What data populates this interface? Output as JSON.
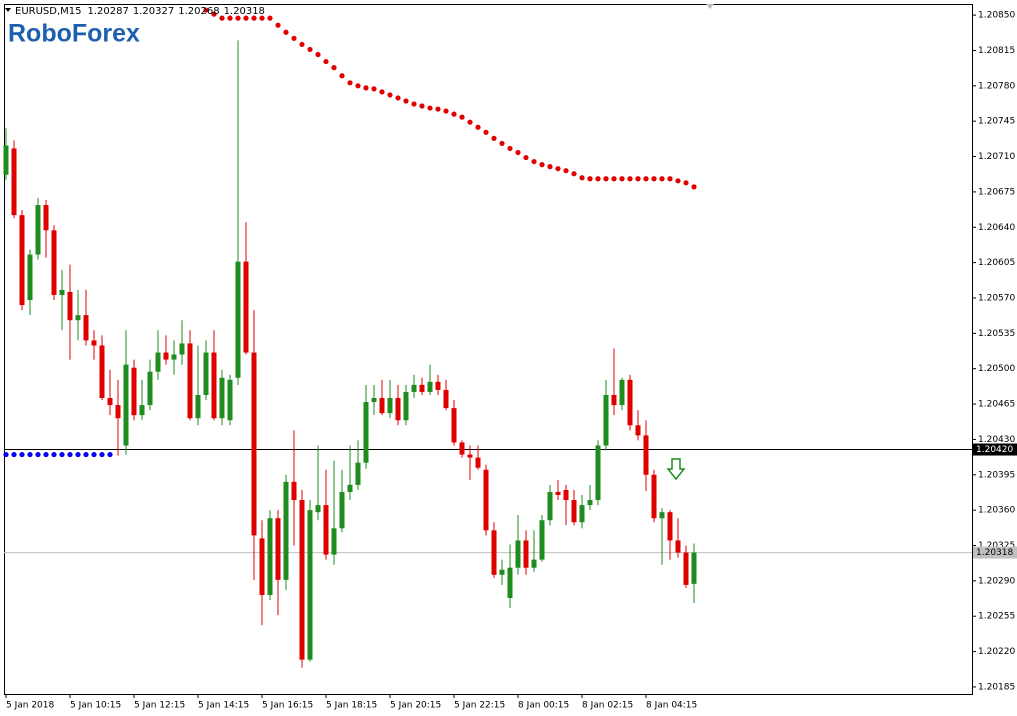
{
  "chart_data": {
    "type": "candlestick",
    "symbol": "EURUSD,M15",
    "watermark": "RoboForex",
    "categories": [
      "5 Jan 2018",
      null,
      null,
      null,
      null,
      null,
      null,
      null,
      "5 Jan 10:15",
      null,
      null,
      null,
      null,
      null,
      null,
      null,
      "5 Jan 12:15",
      null,
      null,
      null,
      null,
      null,
      null,
      null,
      "5 Jan 14:15",
      null,
      null,
      null,
      null,
      null,
      null,
      null,
      "5 Jan 16:15",
      null,
      null,
      null,
      null,
      null,
      null,
      null,
      "5 Jan 18:15",
      null,
      null,
      null,
      null,
      null,
      null,
      null,
      "5 Jan 20:15",
      null,
      null,
      null,
      null,
      null,
      null,
      null,
      "5 Jan 22:15",
      null,
      null,
      null,
      null,
      null,
      null,
      null,
      "8 Jan 00:15",
      null,
      null,
      null,
      null,
      null,
      null,
      null,
      "8 Jan 02:15",
      null,
      null,
      null,
      null,
      null,
      null,
      null,
      "8 Jan 04:15",
      null,
      null,
      null,
      null,
      null,
      null
    ],
    "open": [
      1.20692,
      1.20718,
      1.20652,
      1.20568,
      1.20613,
      1.20662,
      1.20637,
      1.20573,
      1.20576,
      1.20548,
      1.20553,
      1.20528,
      1.20523,
      1.20471,
      1.20464,
      1.20424,
      1.20501,
      1.20454,
      1.20464,
      1.20497,
      1.20516,
      1.20509,
      1.20514,
      1.20525,
      1.20451,
      1.20474,
      1.20516,
      1.20451,
      1.20449,
      1.20491,
      1.20606,
      1.20516,
      1.20332,
      1.20276,
      1.20352,
      1.20291,
      1.20388,
      1.2037,
      1.20212,
      1.20358,
      1.20365,
      1.20316,
      1.20342,
      1.20378,
      1.20385,
      1.20407,
      1.20467,
      1.20471,
      1.20456,
      1.20471,
      1.20449,
      1.20477,
      1.20484,
      1.20477,
      1.20487,
      1.20479,
      1.20461,
      1.20427,
      1.20415,
      1.20412,
      1.204,
      1.2034,
      1.20296,
      1.20273,
      1.20303,
      1.2033,
      1.20303,
      1.20311,
      1.2035,
      1.20378,
      1.2038,
      1.2037,
      1.20348,
      1.20365,
      1.2037,
      1.20424,
      1.20474,
      1.20464,
      1.20489,
      1.20444,
      1.20434,
      1.20395,
      1.20352,
      1.20358,
      1.2033,
      1.20318,
      1.20287
    ],
    "high": [
      1.20738,
      1.20726,
      1.20657,
      1.20618,
      1.20669,
      1.20667,
      1.20642,
      1.20598,
      1.20603,
      1.20578,
      1.20578,
      1.20538,
      1.20533,
      1.20499,
      1.20489,
      1.20538,
      1.20509,
      1.20489,
      1.20509,
      1.20538,
      1.20533,
      1.20528,
      1.20548,
      1.20538,
      1.20523,
      1.20528,
      1.20538,
      1.20499,
      1.20494,
      1.20825,
      1.20645,
      1.20558,
      1.2035,
      1.2036,
      1.2036,
      1.20395,
      1.20439,
      1.2038,
      1.2037,
      1.20424,
      1.204,
      1.20409,
      1.204,
      1.20424,
      1.20429,
      1.20484,
      1.20484,
      1.20489,
      1.20489,
      1.20484,
      1.20484,
      1.20494,
      1.20491,
      1.20504,
      1.20494,
      1.20489,
      1.20469,
      1.20429,
      1.20424,
      1.20424,
      1.20405,
      1.20348,
      1.20311,
      1.20326,
      1.20355,
      1.2034,
      1.2034,
      1.20355,
      1.20385,
      1.2039,
      1.20385,
      1.2038,
      1.20375,
      1.20385,
      1.20429,
      1.20489,
      1.2052,
      1.20491,
      1.20494,
      1.20459,
      1.20449,
      1.204,
      1.20362,
      1.2036,
      1.20352,
      1.20325,
      1.20327
    ],
    "low": [
      1.20687,
      1.20649,
      1.20558,
      1.20553,
      1.20608,
      1.2061,
      1.20568,
      1.20538,
      1.20509,
      1.20528,
      1.20523,
      1.20509,
      1.20469,
      1.20454,
      1.20414,
      1.20415,
      1.20449,
      1.20449,
      1.20459,
      1.20489,
      1.20504,
      1.20494,
      1.20504,
      1.20449,
      1.20444,
      1.20469,
      1.20449,
      1.20444,
      1.20444,
      1.20484,
      1.20514,
      1.20291,
      1.20246,
      1.20271,
      1.20256,
      1.20281,
      1.20325,
      1.20204,
      1.2021,
      1.2035,
      1.20311,
      1.20306,
      1.20338,
      1.2037,
      1.2038,
      1.20401,
      1.20454,
      1.20454,
      1.20451,
      1.20444,
      1.20444,
      1.20471,
      1.20474,
      1.20474,
      1.20474,
      1.20459,
      1.20424,
      1.20412,
      1.2039,
      1.204,
      1.20335,
      1.20293,
      1.20286,
      1.20263,
      1.20296,
      1.20296,
      1.20299,
      1.20309,
      1.20345,
      1.2037,
      1.20345,
      1.20345,
      1.20342,
      1.2036,
      1.20365,
      1.20419,
      1.20454,
      1.20459,
      1.20439,
      1.20429,
      1.20379,
      1.20348,
      1.20306,
      1.20311,
      1.20313,
      1.20283,
      1.20268
    ],
    "close": [
      1.20721,
      1.20652,
      1.20563,
      1.20613,
      1.20662,
      1.20637,
      1.20573,
      1.20578,
      1.20548,
      1.20553,
      1.20528,
      1.20523,
      1.20471,
      1.20464,
      1.20451,
      1.20504,
      1.20454,
      1.20464,
      1.20497,
      1.20516,
      1.20509,
      1.20514,
      1.20525,
      1.20451,
      1.20474,
      1.20516,
      1.20451,
      1.20491,
      1.20489,
      1.20606,
      1.20516,
      1.20335,
      1.20276,
      1.20352,
      1.20291,
      1.20388,
      1.2037,
      1.20212,
      1.2036,
      1.20365,
      1.20316,
      1.20342,
      1.20378,
      1.20385,
      1.20407,
      1.20467,
      1.20471,
      1.20456,
      1.20471,
      1.20449,
      1.20477,
      1.20484,
      1.20477,
      1.20487,
      1.20479,
      1.20461,
      1.20427,
      1.20415,
      1.20412,
      1.20402,
      1.2034,
      1.20296,
      1.20301,
      1.20303,
      1.2033,
      1.20303,
      1.20311,
      1.2035,
      1.20378,
      1.20375,
      1.2037,
      1.20348,
      1.20365,
      1.2037,
      1.20424,
      1.20474,
      1.20464,
      1.20489,
      1.20444,
      1.20434,
      1.20395,
      1.20352,
      1.20358,
      1.2033,
      1.20318,
      1.20286,
      1.20318
    ],
    "up_color": "#1e8c1e",
    "down_color": "#e00000",
    "overlays": [
      {
        "color": "#e00000",
        "values": [
          null,
          null,
          null,
          null,
          null,
          null,
          null,
          null,
          null,
          null,
          null,
          null,
          null,
          null,
          null,
          null,
          null,
          null,
          null,
          null,
          null,
          null,
          null,
          null,
          null,
          1.20855,
          1.20851,
          1.20847,
          1.20847,
          1.20847,
          1.20847,
          1.20847,
          1.20847,
          1.20847,
          1.2084,
          1.20833,
          1.20827,
          1.20821,
          1.20816,
          1.20811,
          1.20804,
          1.20798,
          1.2079,
          1.20783,
          1.2078,
          1.20778,
          1.20777,
          1.20774,
          1.20771,
          1.20768,
          1.20765,
          1.20762,
          1.2076,
          1.20758,
          1.20757,
          1.20755,
          1.20752,
          1.20749,
          1.20744,
          1.20739,
          1.20734,
          1.20728,
          1.20723,
          1.20718,
          1.20714,
          1.20709,
          1.20705,
          1.20702,
          1.207,
          1.20698,
          1.20696,
          1.20693,
          1.20689,
          1.20688,
          1.20688,
          1.20688,
          1.20688,
          1.20688,
          1.20688,
          1.20688,
          1.20688,
          1.20688,
          1.20688,
          1.20688,
          1.20686,
          1.20684,
          1.2068
        ]
      },
      {
        "color": "#0000ff",
        "values": [
          1.20415,
          1.20415,
          1.20415,
          1.20415,
          1.20415,
          1.20415,
          1.20415,
          1.20415,
          1.20415,
          1.20415,
          1.20415,
          1.20415,
          1.20415,
          1.20415,
          null,
          null,
          null,
          null,
          null,
          null,
          null,
          null,
          null,
          null,
          null,
          null,
          null,
          null,
          null,
          null,
          null,
          null,
          null,
          null,
          null,
          null,
          null,
          null,
          null,
          null,
          null,
          null,
          null,
          null,
          null,
          null,
          null,
          null,
          null,
          null,
          null,
          null,
          null,
          null,
          null,
          null,
          null,
          null,
          null,
          null,
          null,
          null,
          null,
          null,
          null,
          null,
          null,
          null,
          null,
          null,
          null,
          null,
          null,
          null,
          null,
          null,
          null,
          null,
          null,
          null,
          null,
          null,
          null,
          null,
          null,
          null,
          null
        ]
      }
    ],
    "hlines": [
      {
        "value": 1.2042,
        "label": "1.20420",
        "color": "#000000"
      },
      {
        "value": 1.20318,
        "label": "1.20318",
        "color": "#c0c0c0"
      }
    ],
    "ylim": [
      1.20178,
      1.20861
    ],
    "yticks": [
      {
        "value": 1.2085,
        "label": "1.20850"
      },
      1.20815,
      {
        "value": 1.2078,
        "label": "1.20780"
      },
      1.20745,
      {
        "value": 1.2071,
        "label": "1.20710"
      },
      1.20675,
      {
        "value": 1.2064,
        "label": "1.20640"
      },
      1.20605,
      {
        "value": 1.2057,
        "label": "1.20570"
      },
      1.20535,
      {
        "value": 1.205,
        "label": "1.20500"
      },
      1.20465,
      {
        "value": 1.2043,
        "label": "1.20430"
      },
      1.20395,
      {
        "value": 1.2036,
        "label": "1.20360"
      },
      1.20325,
      {
        "value": 1.2029,
        "label": "1.20290"
      },
      1.20255,
      {
        "value": 1.2022,
        "label": "1.20220"
      },
      1.20185
    ]
  }
}
